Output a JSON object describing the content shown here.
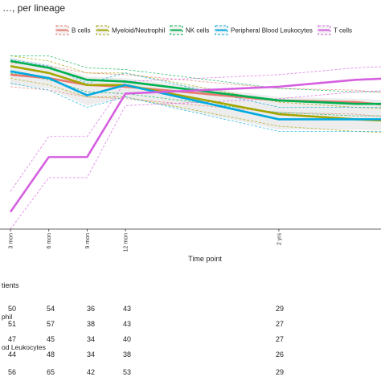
{
  "chart_data": {
    "type": "line",
    "title": "…, per lineage",
    "xlabel": "Time point",
    "x_ticks": [
      "3 mon",
      "6 mon",
      "9 mon",
      "12 mon",
      "2 yrs"
    ],
    "x_months": [
      3,
      6,
      9,
      12,
      24
    ],
    "series": [
      {
        "name": "B cells",
        "color": "#e8796f",
        "values": [
          90,
          88,
          84,
          83,
          75,
          74,
          72
        ]
      },
      {
        "name": "Myeloid/Neutrophil",
        "color": "#a3a500",
        "values": [
          95,
          91,
          84,
          84,
          67,
          64,
          63
        ]
      },
      {
        "name": "NK cells",
        "color": "#00b050",
        "values": [
          98,
          94,
          87,
          86,
          75,
          73,
          73
        ]
      },
      {
        "name": "Peripheral Blood Leukocytes",
        "color": "#00a9e0",
        "values": [
          92,
          88,
          78,
          84,
          64,
          64,
          64
        ]
      },
      {
        "name": "T cells",
        "color": "#d55fe0",
        "values": [
          10,
          42,
          42,
          79,
          83,
          87,
          88
        ]
      }
    ],
    "x_points": [
      3,
      6,
      9,
      12,
      24,
      30,
      33
    ],
    "grid": false,
    "legend": "top"
  },
  "table": {
    "title": "tients",
    "rows": [
      {
        "label": "",
        "values": [
          "50",
          "54",
          "36",
          "43",
          "29"
        ]
      },
      {
        "label": "phil",
        "values": [
          "51",
          "57",
          "38",
          "43",
          "27"
        ]
      },
      {
        "label": "",
        "values": [
          "47",
          "45",
          "34",
          "40",
          "27"
        ]
      },
      {
        "label": "od Leukocytes",
        "values": [
          "44",
          "48",
          "34",
          "38",
          "26"
        ]
      },
      {
        "label": "",
        "values": [
          "56",
          "65",
          "42",
          "53",
          "29"
        ]
      }
    ]
  }
}
